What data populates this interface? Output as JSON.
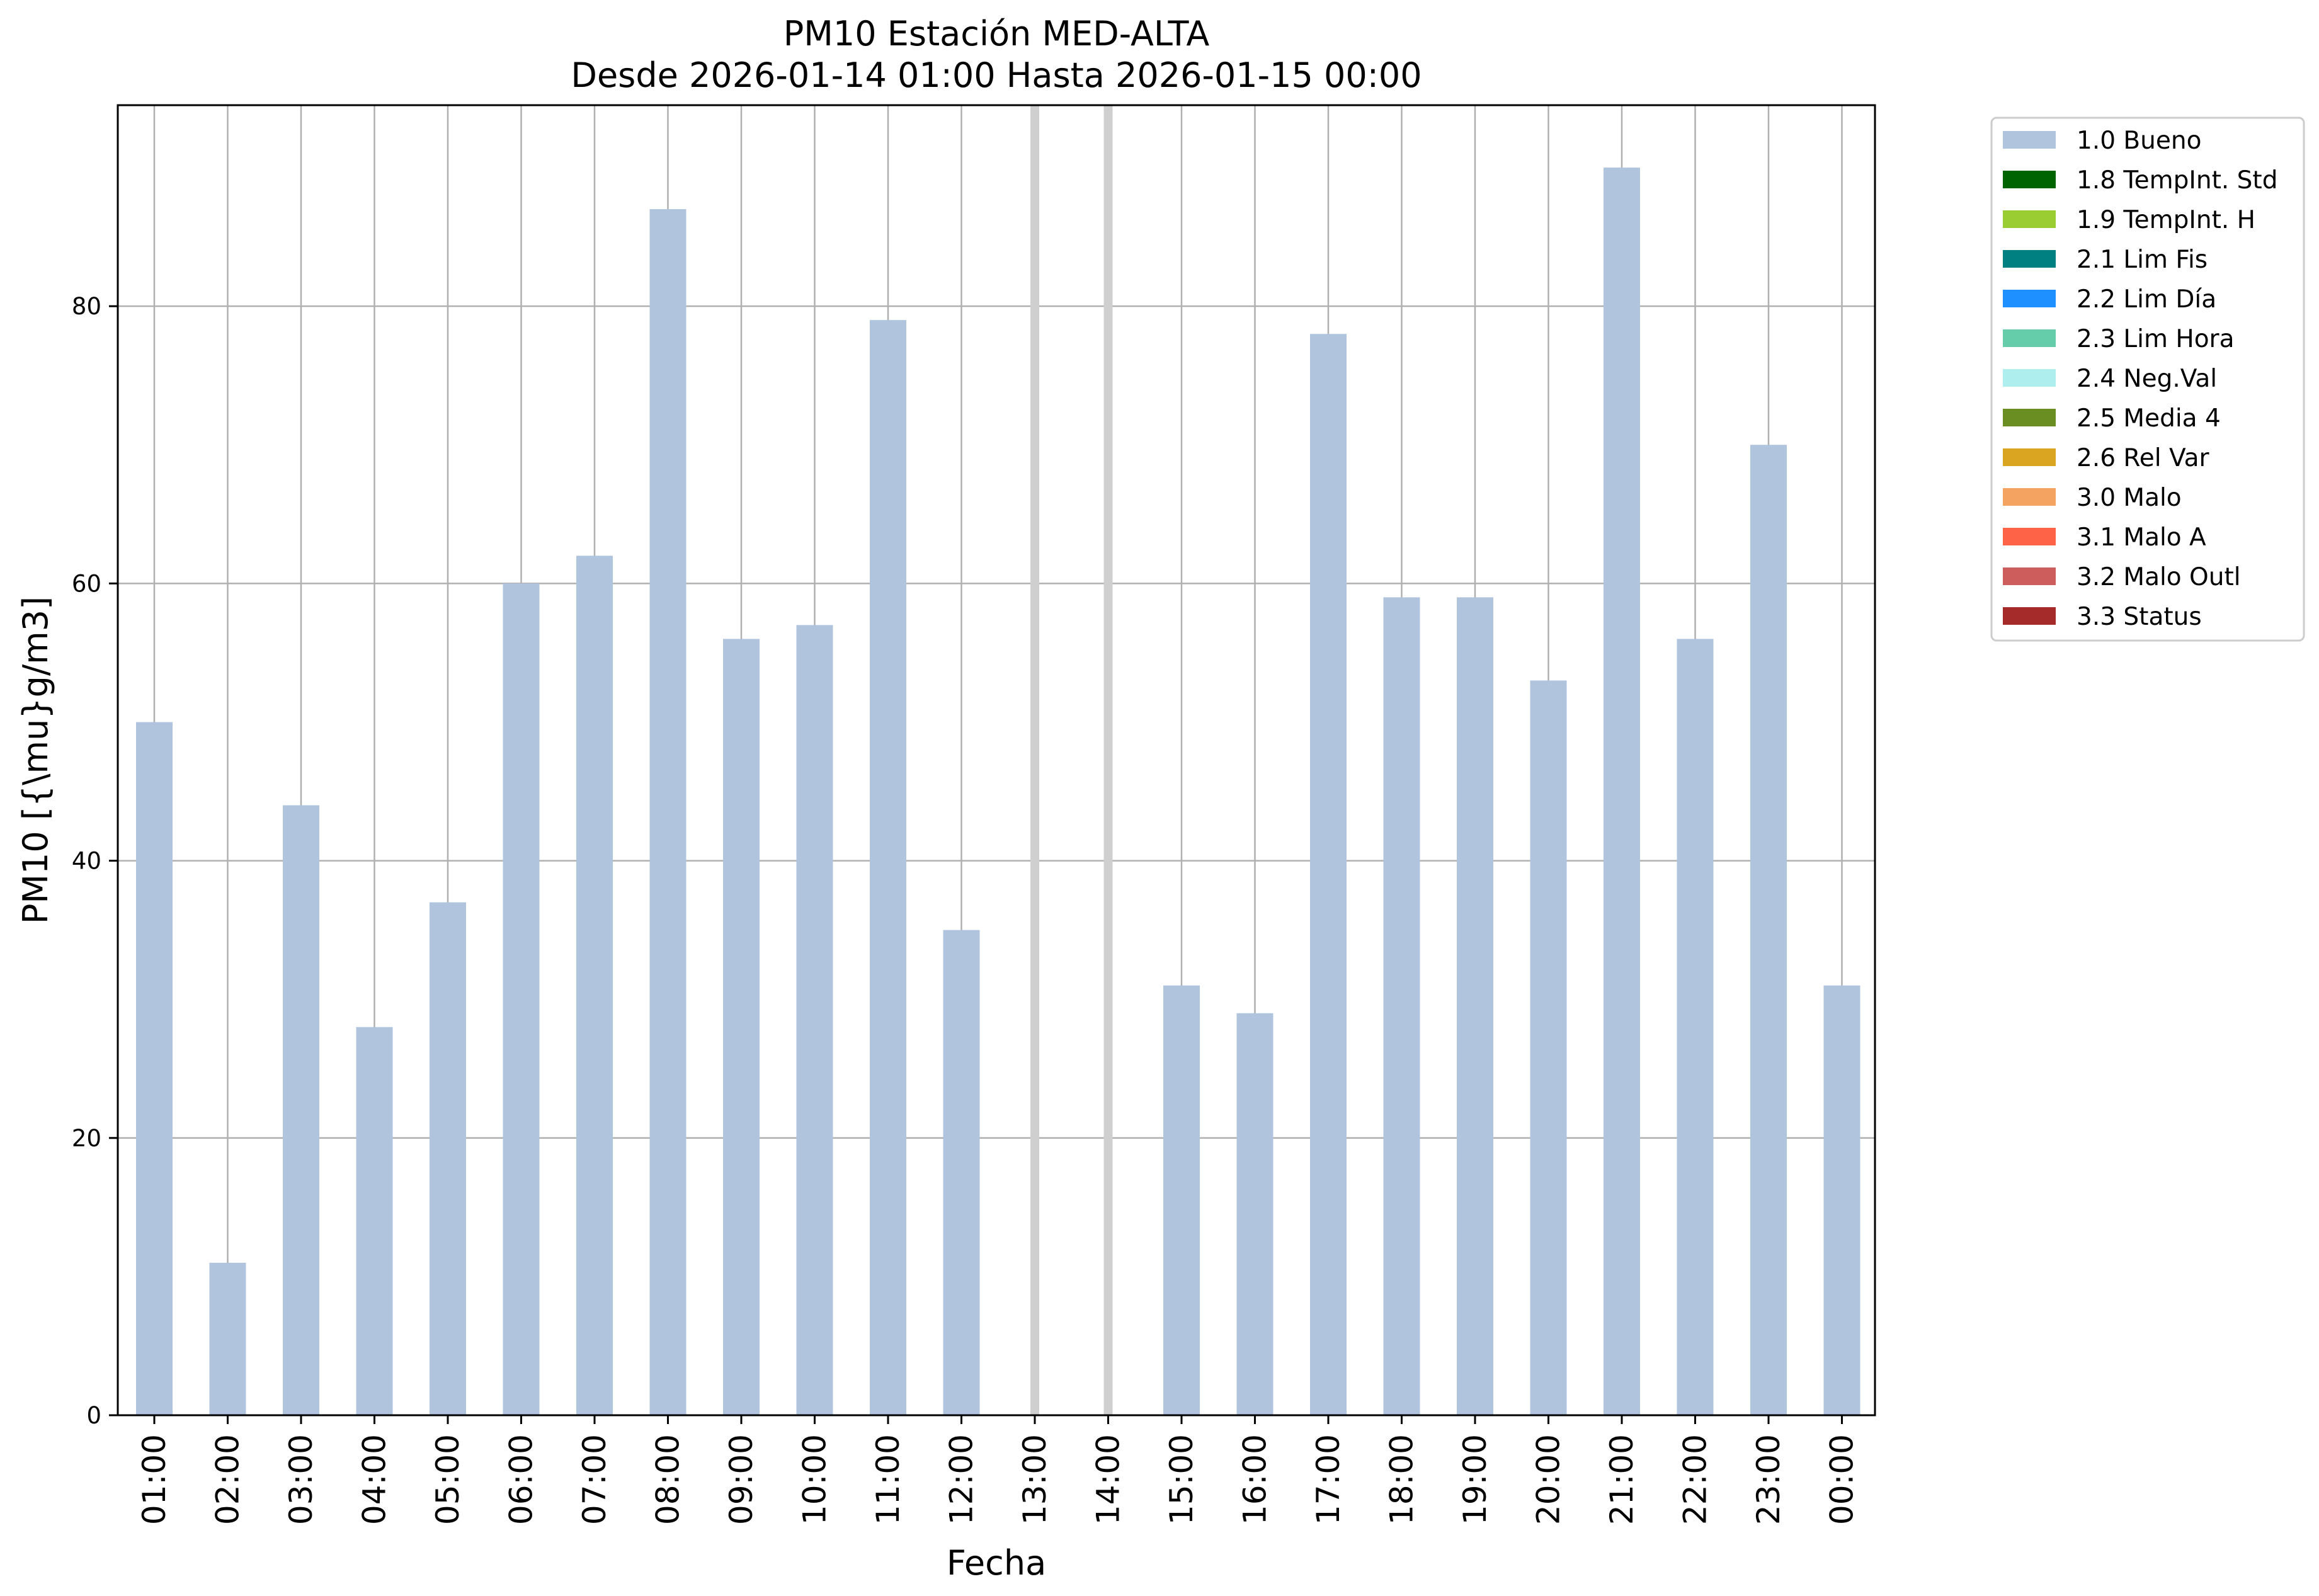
{
  "chart_data": {
    "type": "bar",
    "title": "PM10 Estación MED-ALTA",
    "subtitle": "Desde 2026-01-14 01:00 Hasta 2026-01-15 00:00",
    "xlabel": "Fecha",
    "ylabel": "PM10 [{\\mu}g/m3]",
    "ylim": [
      0,
      94.5
    ],
    "yticks": [
      0,
      20,
      40,
      60,
      80
    ],
    "grid": true,
    "legend_position": "outside-top-right",
    "categories": [
      "01:00",
      "02:00",
      "03:00",
      "04:00",
      "05:00",
      "06:00",
      "07:00",
      "08:00",
      "09:00",
      "10:00",
      "11:00",
      "12:00",
      "13:00",
      "14:00",
      "15:00",
      "16:00",
      "17:00",
      "18:00",
      "19:00",
      "20:00",
      "21:00",
      "22:00",
      "23:00",
      "00:00"
    ],
    "series": [
      {
        "name": "1.0 Bueno",
        "color": "#b0c4de",
        "values": [
          50,
          11,
          44,
          28,
          37,
          60,
          62,
          87,
          56,
          57,
          79,
          35,
          null,
          null,
          31,
          29,
          78,
          59,
          59,
          53,
          90,
          56,
          70,
          31
        ]
      }
    ],
    "missing_markers": [
      "13:00",
      "14:00"
    ],
    "legend": [
      {
        "label": "1.0 Bueno",
        "color": "#b0c4de"
      },
      {
        "label": "1.8 TempInt. Std",
        "color": "#006400"
      },
      {
        "label": "1.9 TempInt. H",
        "color": "#9acd32"
      },
      {
        "label": "2.1 Lim Fis",
        "color": "#008080"
      },
      {
        "label": "2.2 Lim Día",
        "color": "#1e90ff"
      },
      {
        "label": "2.3 Lim Hora",
        "color": "#66cdaa"
      },
      {
        "label": "2.4 Neg.Val",
        "color": "#afeeee"
      },
      {
        "label": "2.5 Media 4",
        "color": "#6b8e23"
      },
      {
        "label": "2.6 Rel Var",
        "color": "#daa520"
      },
      {
        "label": "3.0 Malo",
        "color": "#f4a460"
      },
      {
        "label": "3.1 Malo A",
        "color": "#ff6347"
      },
      {
        "label": "3.2 Malo Outl",
        "color": "#cd5c5c"
      },
      {
        "label": "3.3 Status",
        "color": "#a52a2a"
      }
    ]
  }
}
